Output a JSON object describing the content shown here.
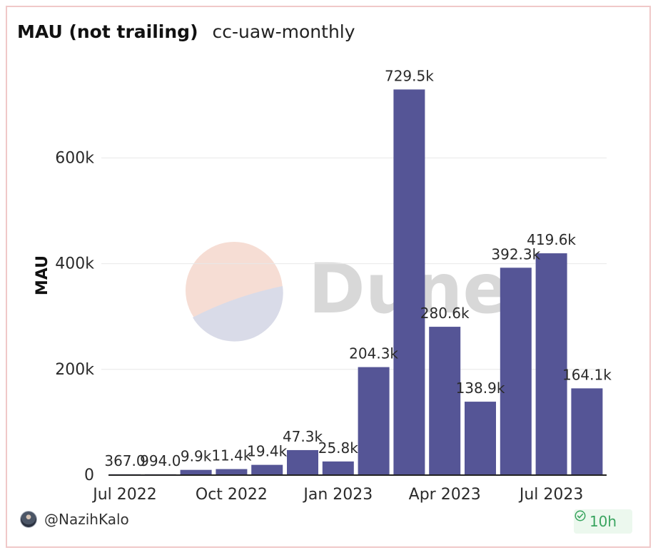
{
  "header": {
    "title": "MAU (not trailing)",
    "subtitle": "cc-uaw-monthly"
  },
  "watermark": {
    "text": "Dune"
  },
  "footer": {
    "author": "@NazihKalo",
    "age": "10h",
    "avatar_icon": "avatar",
    "badge_icon": "check-circle-icon"
  },
  "colors": {
    "bar": "#555596",
    "grid": "#e8e8e8",
    "text": "#2a2a2a",
    "card_border": "#f0c8c8",
    "badge_bg": "#ecf8ee",
    "badge_text": "#39a45f",
    "watermark_orange": "#f6ddd4",
    "watermark_blue": "#d9dbe8",
    "watermark_text": "#d8d8d8"
  },
  "chart_data": {
    "type": "bar",
    "title": "",
    "xlabel": "",
    "ylabel": "MAU",
    "ylim": [
      0,
      780000
    ],
    "yticks": [
      0,
      200000,
      400000,
      600000
    ],
    "ytick_labels": [
      "0",
      "200k",
      "400k",
      "600k"
    ],
    "xtick_positions": [
      0,
      3,
      6,
      9,
      12
    ],
    "xtick_labels": [
      "Jul 2022",
      "Oct 2022",
      "Jan 2023",
      "Apr 2023",
      "Jul 2023"
    ],
    "categories": [
      "2022-07",
      "2022-08",
      "2022-09",
      "2022-10",
      "2022-11",
      "2022-12",
      "2023-01",
      "2023-02",
      "2023-03",
      "2023-04",
      "2023-05",
      "2023-06",
      "2023-07",
      "2023-08"
    ],
    "values": [
      367,
      994,
      9900,
      11400,
      19400,
      47300,
      25800,
      204300,
      729500,
      280600,
      138900,
      392300,
      419600,
      164100
    ],
    "value_labels": [
      "367.0",
      "994.0",
      "9.9k",
      "11.4k",
      "19.4k",
      "47.3k",
      "25.8k",
      "204.3k",
      "729.5k",
      "280.6k",
      "138.9k",
      "392.3k",
      "419.6k",
      "164.1k"
    ],
    "grid": true,
    "legend": "none"
  }
}
